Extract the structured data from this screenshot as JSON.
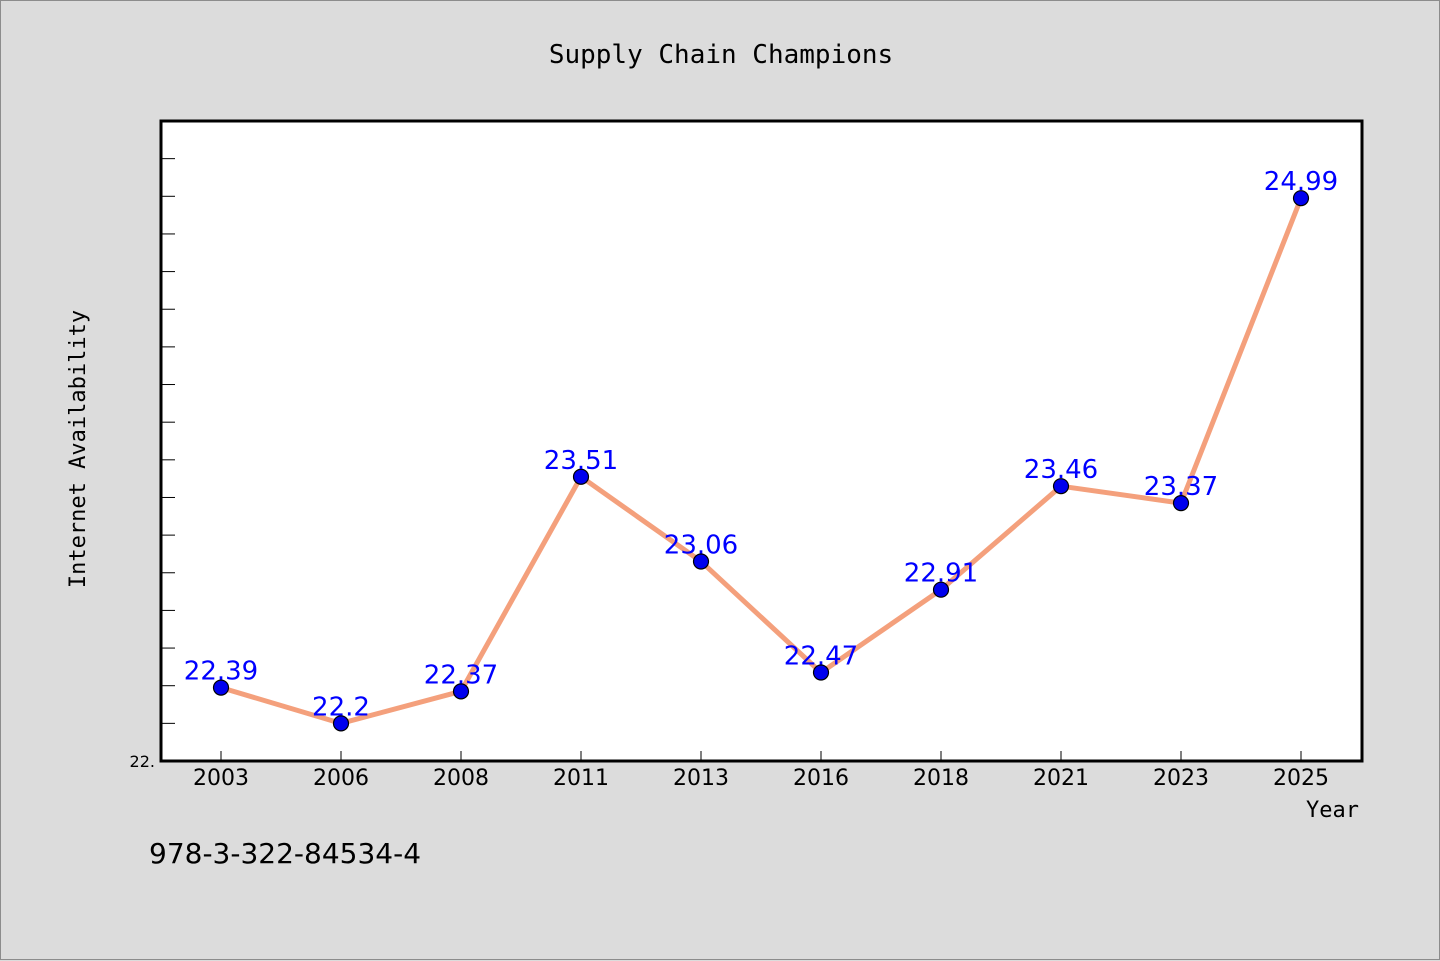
{
  "footer_text": "978-3-322-84534-4",
  "colors": {
    "background": "#dcdcdc",
    "plot_background": "#ffffff",
    "line": "#f4a07c",
    "marker": "#0000ee",
    "data_label": "#0000ff"
  },
  "chart_data": {
    "type": "line",
    "title": "Supply Chain Champions",
    "xlabel": "Year",
    "ylabel": "Internet Availability",
    "categories": [
      "2003",
      "2006",
      "2008",
      "2011",
      "2013",
      "2016",
      "2018",
      "2021",
      "2023",
      "2025"
    ],
    "values": [
      22.39,
      22.2,
      22.37,
      23.51,
      23.06,
      22.47,
      22.91,
      23.46,
      23.37,
      24.99
    ],
    "value_labels": [
      "22.39",
      "22.2",
      "22.37",
      "23.51",
      "23.06",
      "22.47",
      "22.91",
      "23.46",
      "23.37",
      "24.99"
    ],
    "y_tick_labels": [
      "22."
    ],
    "ylim": [
      22.0,
      25.4
    ],
    "grid": false,
    "legend": "none"
  }
}
